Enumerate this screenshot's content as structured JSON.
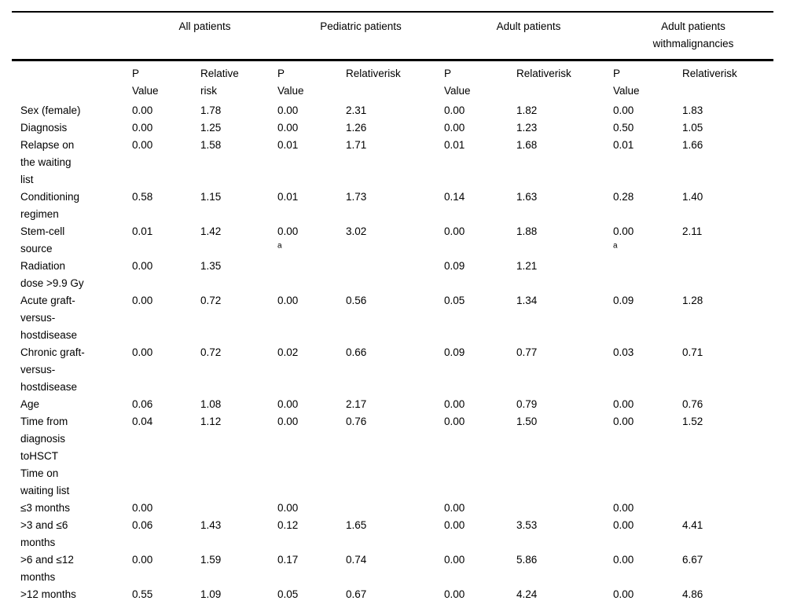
{
  "table": {
    "group_headers": [
      {
        "label": "",
        "span": 1
      },
      {
        "label": "All patients",
        "span": 2
      },
      {
        "label": "Pediatric patients",
        "span": 2
      },
      {
        "label": "Adult patients",
        "span": 2
      },
      {
        "label": "Adult patients\nwithmalignancies",
        "span": 2
      }
    ],
    "sub_headers": [
      "",
      "P\nValue",
      "Relative\nrisk",
      "P\nValue",
      "Relativerisk",
      "P\nValue",
      "Relativerisk",
      "P\nValue",
      "Relativerisk"
    ],
    "rows": [
      {
        "label": "Sex (female)",
        "cells": [
          "0.00",
          "1.78",
          "0.00",
          "2.31",
          "0.00",
          "1.82",
          "0.00",
          "1.83"
        ]
      },
      {
        "label": "Diagnosis",
        "cells": [
          "0.00",
          "1.25",
          "0.00",
          "1.26",
          "0.00",
          "1.23",
          "0.50",
          "1.05"
        ]
      },
      {
        "label": "Relapse on\nthe waiting\nlist",
        "cells": [
          "0.00",
          "1.58",
          "0.01",
          "1.71",
          "0.01",
          "1.68",
          "0.01",
          "1.66"
        ]
      },
      {
        "label": "Conditioning\nregimen",
        "cells": [
          "0.58",
          "1.15",
          "0.01",
          "1.73",
          "0.14",
          "1.63",
          "0.28",
          "1.40"
        ]
      },
      {
        "label": "Stem-cell\nsource",
        "cells": [
          "0.01",
          "1.42",
          {
            "v": "0.00",
            "sup": "a"
          },
          "3.02",
          "0.00",
          "1.88",
          {
            "v": "0.00",
            "sup": "a"
          },
          "2.11"
        ]
      },
      {
        "label": "Radiation\ndose >9.9 Gy",
        "cells": [
          "0.00",
          "1.35",
          "",
          "",
          "0.09",
          "1.21",
          "",
          ""
        ]
      },
      {
        "label": "Acute graft-\nversus-\nhostdisease",
        "cells": [
          "0.00",
          "0.72",
          "0.00",
          "0.56",
          "0.05",
          "1.34",
          "0.09",
          "1.28"
        ]
      },
      {
        "label": "Chronic graft-\nversus-\nhostdisease",
        "cells": [
          "0.00",
          "0.72",
          "0.02",
          "0.66",
          "0.09",
          "0.77",
          "0.03",
          "0.71"
        ]
      },
      {
        "label": "Age",
        "cells": [
          "0.06",
          "1.08",
          "0.00",
          "2.17",
          "0.00",
          "0.79",
          "0.00",
          "0.76"
        ]
      },
      {
        "label": "Time from\ndiagnosis\ntoHSCT",
        "cells": [
          "0.04",
          "1.12",
          "0.00",
          "0.76",
          "0.00",
          "1.50",
          "0.00",
          "1.52"
        ]
      },
      {
        "label": "Time on\nwaiting list",
        "cells": [
          "",
          "",
          "",
          "",
          "",
          "",
          "",
          ""
        ]
      },
      {
        "label": "≤3 months",
        "cells": [
          "0.00",
          "",
          "0.00",
          "",
          "0.00",
          "",
          "0.00",
          ""
        ]
      },
      {
        "label": ">3 and ≤6\nmonths",
        "cells": [
          "0.06",
          "1.43",
          "0.12",
          "1.65",
          "0.00",
          "3.53",
          "0.00",
          "4.41"
        ]
      },
      {
        "label": ">6 and ≤12\nmonths",
        "cells": [
          "0.00",
          "1.59",
          "0.17",
          "0.74",
          "0.00",
          "5.86",
          "0.00",
          "6.67"
        ]
      },
      {
        "label": ">12 months",
        "cells": [
          "0.55",
          "1.09",
          "0.05",
          "0.67",
          "0.00",
          "4.24",
          "0.00",
          "4.86"
        ]
      }
    ]
  }
}
